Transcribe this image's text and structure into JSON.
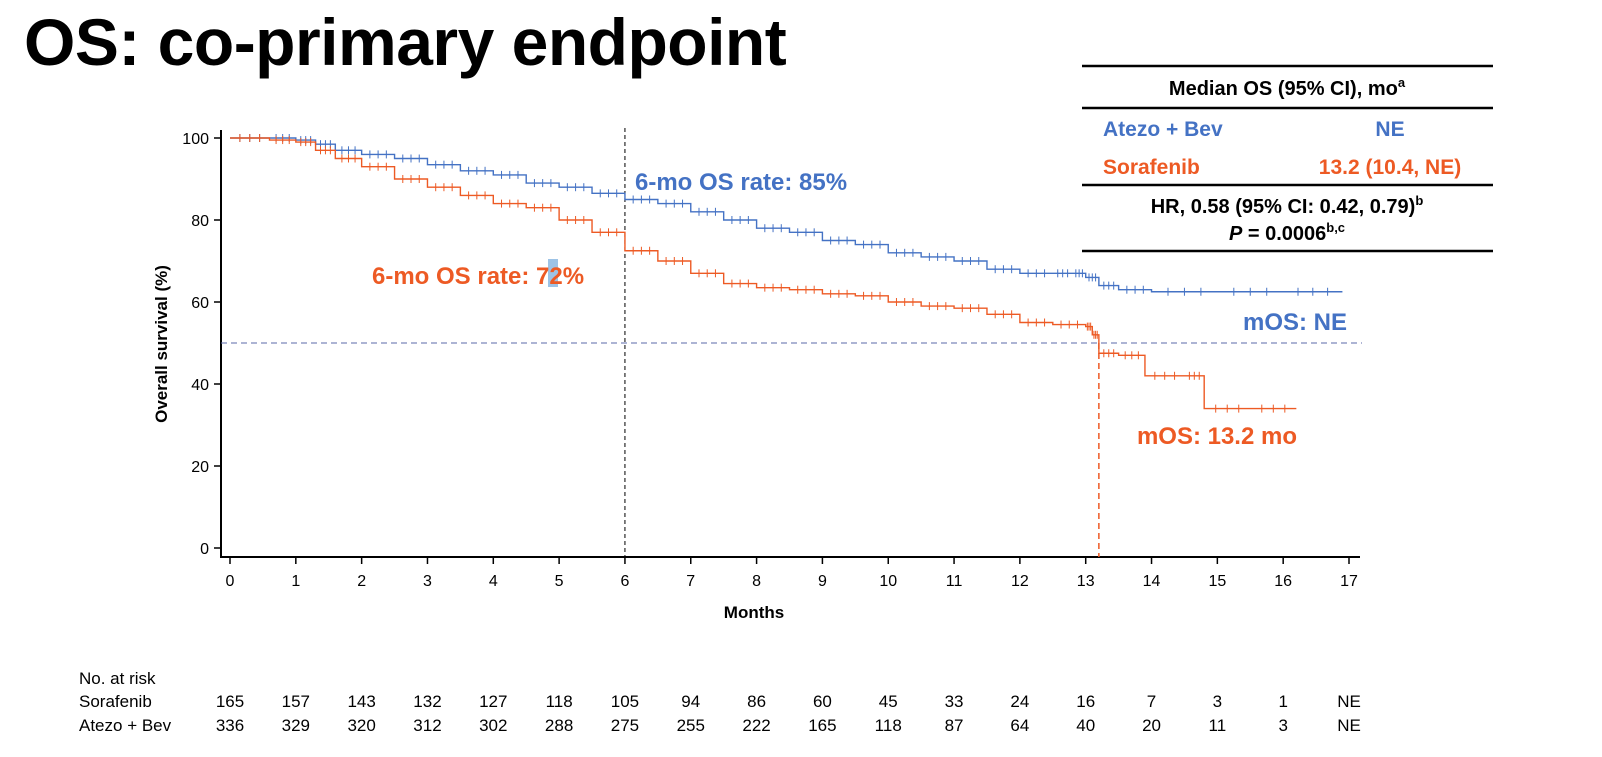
{
  "title": "OS: co-primary endpoint",
  "colors": {
    "atezo": "#4472C4",
    "sorafenib": "#ED5A24",
    "text": "#000000",
    "highlight": "#9DC3E6"
  },
  "chart_data": {
    "type": "line",
    "xlabel": "Months",
    "ylabel": "Overall survival (%)",
    "xlim": [
      0,
      17
    ],
    "ylim": [
      0,
      100
    ],
    "xticks": [
      "0",
      "1",
      "2",
      "3",
      "4",
      "5",
      "6",
      "7",
      "8",
      "9",
      "10",
      "11",
      "12",
      "13",
      "14",
      "15",
      "16",
      "17"
    ],
    "yticks": [
      "0",
      "20",
      "40",
      "60",
      "80",
      "100"
    ],
    "grid": false,
    "series": [
      {
        "name": "Atezo + Bev",
        "x": [
          0,
          0.6,
          1.0,
          1.3,
          1.6,
          2.0,
          2.5,
          3.0,
          3.5,
          4.0,
          4.5,
          5.0,
          5.5,
          6.0,
          6.5,
          7.0,
          7.5,
          8.0,
          8.5,
          9.0,
          9.5,
          10.0,
          10.5,
          11.0,
          11.5,
          12.0,
          12.5,
          12.8,
          13.0,
          13.2,
          13.5,
          14.0,
          15.0,
          16.0,
          16.9
        ],
        "y": [
          100,
          100,
          99.5,
          98.5,
          97,
          96,
          95,
          93.5,
          92,
          91,
          89,
          88,
          86.5,
          85,
          84,
          82,
          80,
          78,
          77,
          75,
          74,
          72,
          71,
          70,
          68,
          67,
          67,
          67,
          66,
          64,
          63,
          62.5,
          62.5,
          62.5,
          62.5
        ]
      },
      {
        "name": "Sorafenib",
        "x": [
          0,
          0.6,
          1.0,
          1.3,
          1.6,
          2.0,
          2.5,
          3.0,
          3.5,
          4.0,
          4.5,
          5.0,
          5.5,
          6.0,
          6.5,
          7.0,
          7.5,
          8.0,
          8.5,
          9.0,
          9.5,
          10.0,
          10.5,
          11.0,
          11.5,
          12.0,
          12.5,
          13.0,
          13.1,
          13.2,
          13.5,
          13.9,
          14.5,
          14.8,
          15.5,
          16.2
        ],
        "y": [
          100,
          99.5,
          99,
          97,
          95,
          93,
          90,
          88,
          86,
          84,
          83,
          80,
          77,
          72.5,
          70,
          67,
          64.5,
          63.5,
          63,
          62,
          61.5,
          60,
          59,
          58.5,
          57,
          55,
          54.5,
          54,
          52,
          47.5,
          47,
          42,
          42,
          34,
          34,
          34
        ]
      }
    ],
    "reference_lines": {
      "x": 6,
      "y": 50,
      "median_x": 13.2
    },
    "annotations": {
      "atezo_6mo": "6-mo OS rate: 85%",
      "sorafenib_6mo": "6-mo OS rate: 72%",
      "atezo_median": "mOS: NE",
      "sorafenib_median": "mOS: 13.2 mo"
    },
    "summary_table": {
      "header": "Median OS (95% CI), mo",
      "header_sup": "a",
      "rows": [
        {
          "label": "Atezo + Bev",
          "value": "NE"
        },
        {
          "label": "Sorafenib",
          "value": "13.2 (10.4, NE)"
        }
      ],
      "hr_text": "HR, 0.58 (95% CI: 0.42, 0.79)",
      "hr_sup": "b",
      "p_label": "P",
      "p_text": " = 0.0006",
      "p_sup": "b,c"
    },
    "risk_table": {
      "title": "No. at risk",
      "rows": [
        {
          "label": "Sorafenib",
          "values": [
            "165",
            "157",
            "143",
            "132",
            "127",
            "118",
            "105",
            "94",
            "86",
            "60",
            "45",
            "33",
            "24",
            "16",
            "7",
            "3",
            "1",
            "NE"
          ]
        },
        {
          "label": "Atezo + Bev",
          "values": [
            "336",
            "329",
            "320",
            "312",
            "302",
            "288",
            "275",
            "255",
            "222",
            "165",
            "118",
            "87",
            "64",
            "40",
            "20",
            "11",
            "3",
            "NE"
          ]
        }
      ]
    }
  }
}
